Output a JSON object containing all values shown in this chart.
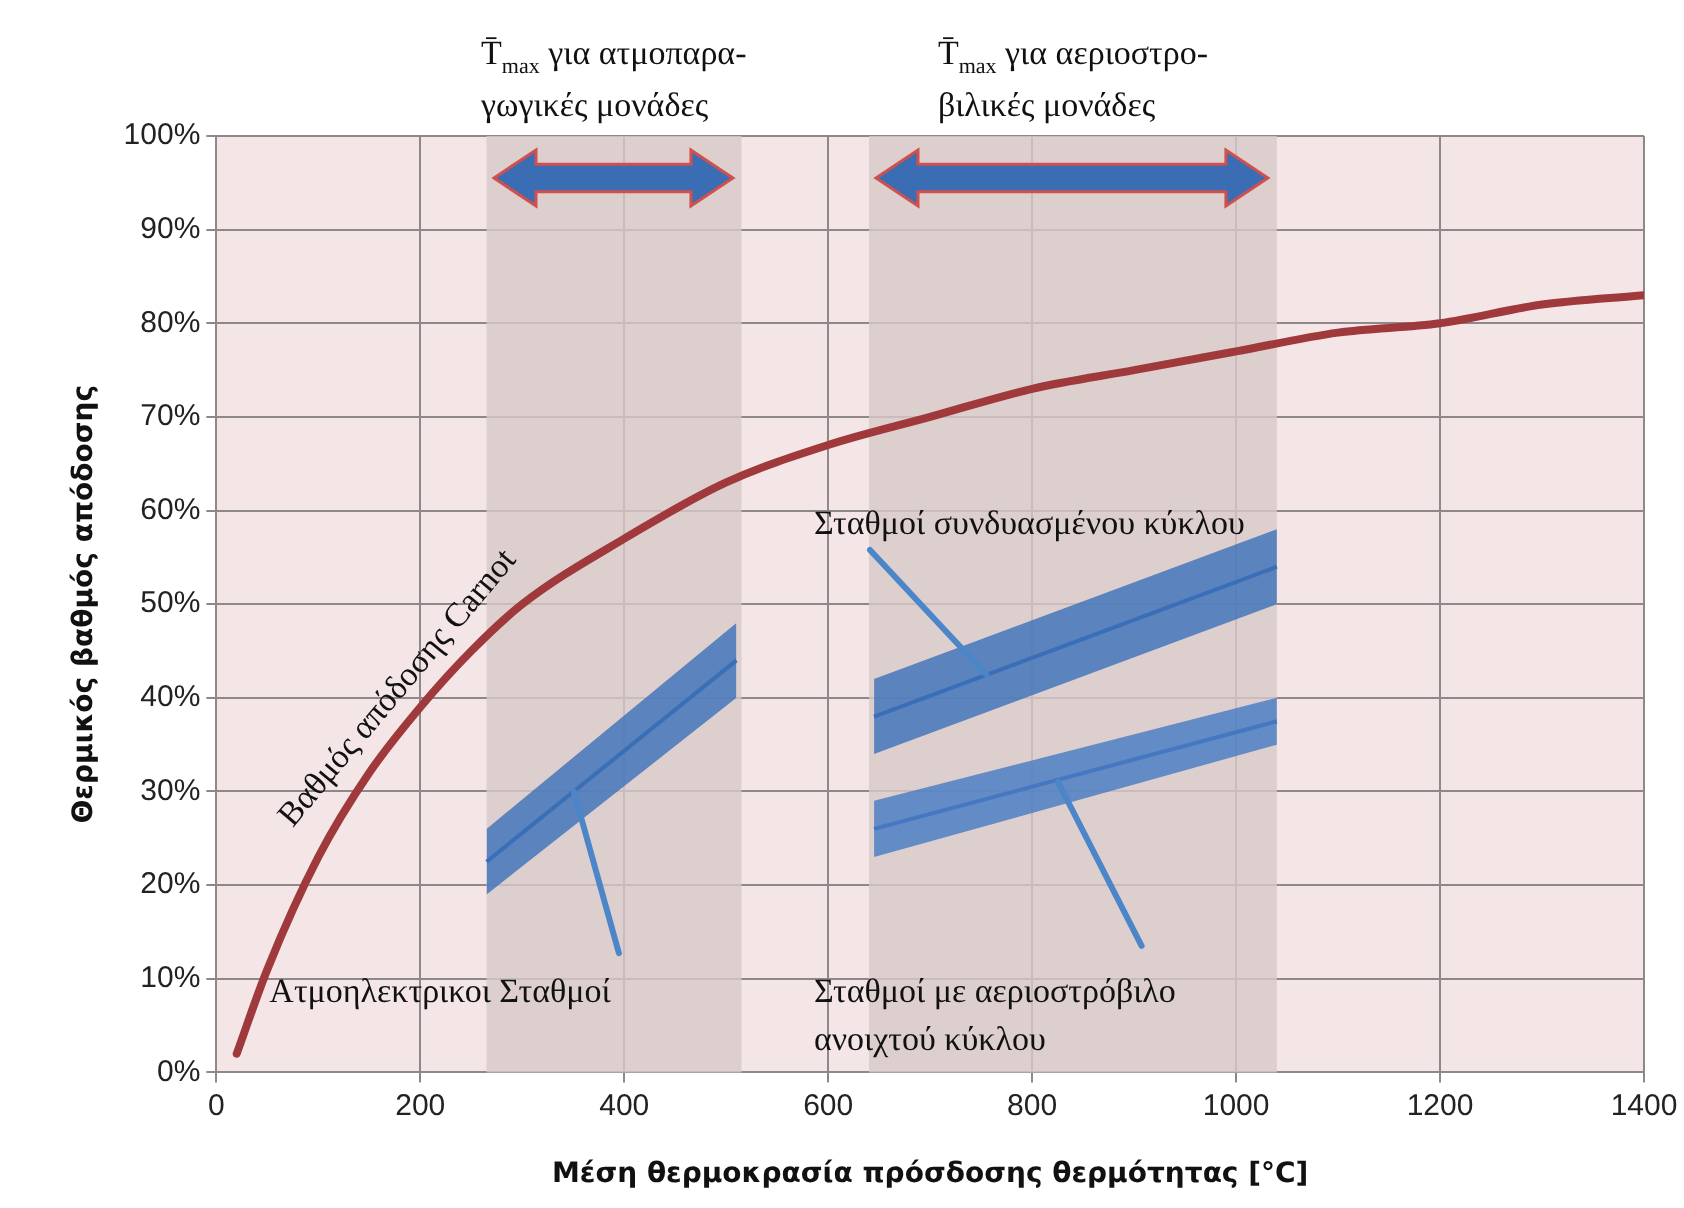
{
  "chart_data": {
    "type": "line",
    "xlabel": "Μέση θερμοκρασία πρόσδοσης θερμότητας [°C]",
    "ylabel": "Θερμικός βαθμός απόδοσης",
    "xlim": [
      0,
      1400
    ],
    "xticks": [
      0,
      200,
      400,
      600,
      800,
      1000,
      1200,
      1400
    ],
    "ylim": [
      0,
      100
    ],
    "yticks": [
      {
        "value": 0,
        "label": "0%"
      },
      {
        "value": 10,
        "label": "10%"
      },
      {
        "value": 20,
        "label": "20%"
      },
      {
        "value": 30,
        "label": "30%"
      },
      {
        "value": 40,
        "label": "40%"
      },
      {
        "value": 50,
        "label": "50%"
      },
      {
        "value": 60,
        "label": "60%"
      },
      {
        "value": 70,
        "label": "70%"
      },
      {
        "value": 80,
        "label": "80%"
      },
      {
        "value": 90,
        "label": "90%"
      },
      {
        "value": 100,
        "label": "100%"
      }
    ],
    "grid": true,
    "legend": false,
    "marker": "none",
    "line_style": "solid",
    "series": [
      {
        "type": "line",
        "name": "Βαθμός απόδοσης Carnot",
        "color": "#a0393b",
        "x": [
          20,
          50,
          100,
          150,
          200,
          250,
          300,
          400,
          500,
          600,
          700,
          800,
          900,
          1000,
          1100,
          1200,
          1300,
          1400
        ],
        "values": [
          2,
          11,
          23,
          32,
          39,
          45,
          50,
          57,
          63,
          67,
          70,
          73,
          75,
          77,
          79,
          80,
          82,
          83
        ]
      },
      {
        "type": "line",
        "color": "#3a6fb8",
        "x": [
          265,
          510
        ],
        "values": [
          22.5,
          44
        ],
        "lower": [
          19,
          40
        ],
        "upper": [
          26,
          48
        ]
      },
      {
        "type": "line",
        "color": "#3a6fb8",
        "x": [
          645,
          1040
        ],
        "values": [
          38,
          54
        ],
        "lower": [
          34,
          50
        ],
        "upper": [
          42,
          58
        ]
      },
      {
        "type": "line",
        "color": "#4479c2",
        "x": [
          645,
          1040
        ],
        "values": [
          26,
          37.5
        ],
        "lower": [
          23,
          35
        ],
        "upper": [
          29,
          40
        ]
      }
    ],
    "bands": [
      {
        "axis": "x",
        "from": 265,
        "to": 515,
        "label": "T̄$_{max}$ για ατμοπαρα-\nγωγικές μονάδες",
        "color": "#d8c9c9"
      },
      {
        "axis": "x",
        "from": 640,
        "to": 1040,
        "label": "T̄$_{max}$ για αεριοστρο-\nβιλικές μονάδες",
        "color": "#d8c9c9"
      }
    ],
    "annotations": [
      {
        "text": "Ατμοηλεκτρικοι Σταθμοί",
        "x": 350,
        "y": 30
      },
      {
        "text": "Σταθμοί συνδυασμένου κύκλου",
        "x": 755,
        "y": 42.5
      },
      {
        "text": "Σταθμοί με αεριοστρόβιλο\nανοιχτού κύκλου",
        "x": 825,
        "y": 31
      }
    ]
  }
}
